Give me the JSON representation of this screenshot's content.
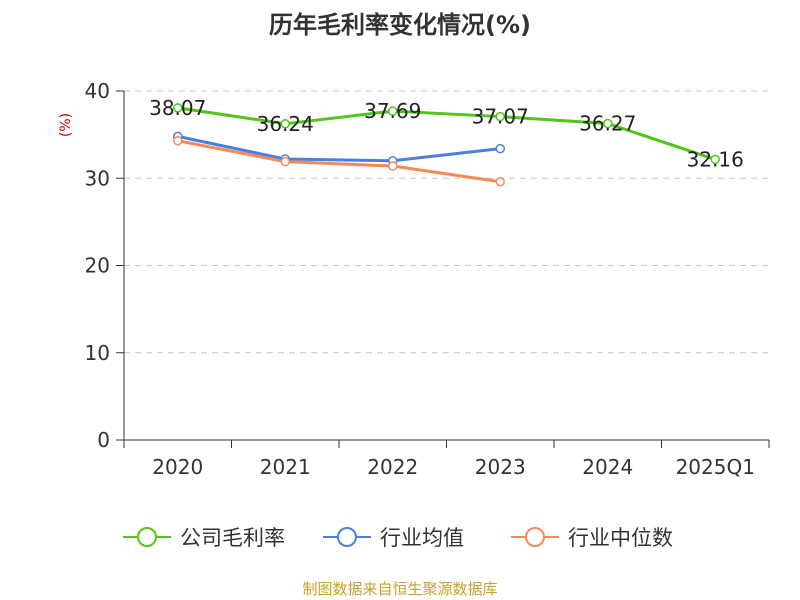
{
  "chart_data": {
    "type": "line",
    "title": "历年毛利率变化情况(%)",
    "ylabel": "(%)",
    "xlabel": "",
    "categories": [
      "2020",
      "2021",
      "2022",
      "2023",
      "2024",
      "2025Q1"
    ],
    "ylim": [
      0,
      40
    ],
    "yticks": [
      0,
      10,
      20,
      30,
      40
    ],
    "grid": true,
    "legend_position": "bottom",
    "series": [
      {
        "name": "公司毛利率",
        "color": "#52c41a",
        "values": [
          38.07,
          36.24,
          37.69,
          37.07,
          36.27,
          32.16
        ],
        "labels": [
          "38.07",
          "36.24",
          "37.69",
          "37.07",
          "36.27",
          "32.16"
        ]
      },
      {
        "name": "行业均值",
        "color": "#4a7fe0",
        "values": [
          34.8,
          32.2,
          32.0,
          33.4,
          null,
          null
        ]
      },
      {
        "name": "行业中位数",
        "color": "#f5895a",
        "values": [
          34.3,
          31.9,
          31.4,
          29.6,
          null,
          null
        ]
      }
    ]
  },
  "source": "制图数据来自恒生聚源数据库"
}
